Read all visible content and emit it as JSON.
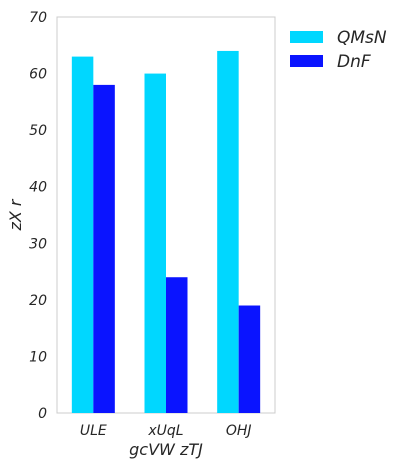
{
  "chart_data": {
    "type": "bar",
    "categories": [
      "ULE",
      "xUqL",
      "OHJ"
    ],
    "series": [
      {
        "name": "QMsN",
        "values": [
          63,
          60,
          64
        ],
        "color": "#00d7ff"
      },
      {
        "name": "DnF",
        "values": [
          58,
          24,
          19
        ],
        "color": "#0a14ff"
      }
    ],
    "xlabel": "gcVW zTJ",
    "ylabel": "zX r",
    "ylim": [
      0,
      70
    ],
    "yticks": [
      0,
      10,
      20,
      30,
      40,
      50,
      60,
      70
    ],
    "grid": false,
    "legend_position": "outside-top-right",
    "frame_color": "#cccccc"
  }
}
